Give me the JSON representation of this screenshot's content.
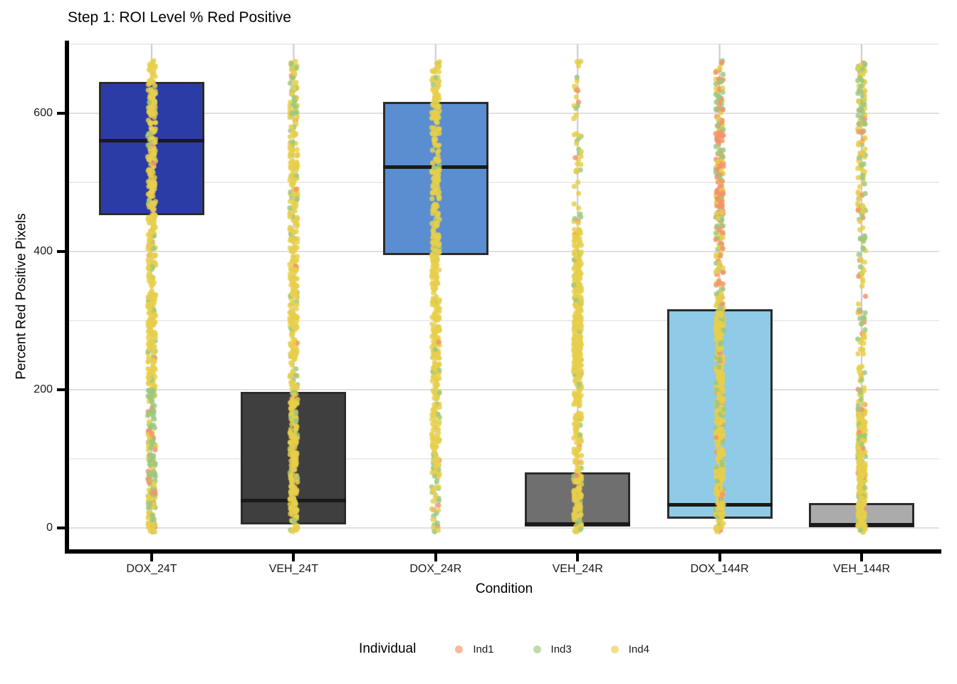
{
  "title": "Step 1: ROI Level % Red Positive",
  "axes": {
    "x": {
      "label": "Condition"
    },
    "y": {
      "label": "Percent Red Positive Pixels"
    }
  },
  "legend": {
    "title": "Individual",
    "entries": [
      {
        "label": "Ind1",
        "color": "#F5936A"
      },
      {
        "label": "Ind3",
        "color": "#9CC87E"
      },
      {
        "label": "Ind4",
        "color": "#E8CF4B"
      }
    ]
  },
  "colors": {
    "axis_line": "#000000",
    "grid_major": "#E0E0E0",
    "grid_minor": "#EDEDED",
    "box_border": "#2C2C2C",
    "median": "#1A1A1A",
    "whisker": "#C8C8C8"
  },
  "chart_data": {
    "type": "boxplot_jitter",
    "title": "Step 1: ROI Level % Red Positive",
    "xlabel": "Condition",
    "ylabel": "Percent Red Positive Pixels",
    "ylim": [
      -35,
      705
    ],
    "yticks": [
      0,
      200,
      400,
      600
    ],
    "yticks_minor": [
      100,
      300,
      500,
      700
    ],
    "grid": true,
    "legend_position": "bottom",
    "categories": [
      "DOX_24T",
      "VEH_24T",
      "DOX_24R",
      "VEH_24R",
      "DOX_144R",
      "VEH_144R"
    ],
    "boxes": [
      {
        "condition": "DOX_24T",
        "q1": 453,
        "median": 560,
        "q3": 645,
        "whisker_low": 0,
        "whisker_high": 700,
        "fill": "#2B3CA6"
      },
      {
        "condition": "VEH_24T",
        "q1": 5,
        "median": 40,
        "q3": 197,
        "whisker_low": 0,
        "whisker_high": 700,
        "fill": "#3F3F3F"
      },
      {
        "condition": "DOX_24R",
        "q1": 395,
        "median": 522,
        "q3": 617,
        "whisker_low": 0,
        "whisker_high": 700,
        "fill": "#5A8ED0"
      },
      {
        "condition": "VEH_24R",
        "q1": 2,
        "median": 6,
        "q3": 80,
        "whisker_low": 0,
        "whisker_high": 700,
        "fill": "#6F6F6F"
      },
      {
        "condition": "DOX_144R",
        "q1": 13,
        "median": 34,
        "q3": 317,
        "whisker_low": 0,
        "whisker_high": 700,
        "fill": "#8FCAE7"
      },
      {
        "condition": "VEH_144R",
        "q1": 1,
        "median": 5,
        "q3": 36,
        "whisker_low": 0,
        "whisker_high": 700,
        "fill": "#ABABAB"
      }
    ],
    "jitter": {
      "point_radius": 3.6,
      "alpha": 0.85,
      "jitter_width": 5.5,
      "value_range": [
        0,
        676
      ],
      "individual_colors": {
        "Ind1": "#F5936A",
        "Ind3": "#9CC87E",
        "Ind4": "#E8CF4B"
      },
      "strips": [
        {
          "condition": "DOX_24T",
          "zones": [
            {
              "range": [
                200,
                676
              ],
              "n": 380,
              "weights": {
                "Ind1": 0.02,
                "Ind3": 0.07,
                "Ind4": 0.91
              }
            },
            {
              "range": [
                60,
                200
              ],
              "n": 110,
              "weights": {
                "Ind1": 0.18,
                "Ind3": 0.58,
                "Ind4": 0.24
              }
            },
            {
              "range": [
                -6,
                60
              ],
              "n": 60,
              "weights": {
                "Ind1": 0.05,
                "Ind3": 0.35,
                "Ind4": 0.6
              }
            }
          ]
        },
        {
          "condition": "VEH_24T",
          "zones": [
            {
              "range": [
                -6,
                560
              ],
              "n": 430,
              "weights": {
                "Ind1": 0.02,
                "Ind3": 0.1,
                "Ind4": 0.88
              }
            },
            {
              "range": [
                560,
                676
              ],
              "n": 70,
              "weights": {
                "Ind1": 0.03,
                "Ind3": 0.3,
                "Ind4": 0.67
              }
            }
          ]
        },
        {
          "condition": "DOX_24R",
          "zones": [
            {
              "range": [
                110,
                676
              ],
              "n": 400,
              "weights": {
                "Ind1": 0.01,
                "Ind3": 0.07,
                "Ind4": 0.92
              }
            },
            {
              "range": [
                -6,
                110
              ],
              "n": 50,
              "weights": {
                "Ind1": 0.04,
                "Ind3": 0.36,
                "Ind4": 0.6
              }
            }
          ]
        },
        {
          "condition": "VEH_24R",
          "zones": [
            {
              "range": [
                -6,
                430
              ],
              "n": 430,
              "weights": {
                "Ind1": 0.01,
                "Ind3": 0.06,
                "Ind4": 0.93
              }
            },
            {
              "range": [
                430,
                676
              ],
              "n": 50,
              "weights": {
                "Ind1": 0.1,
                "Ind3": 0.18,
                "Ind4": 0.72
              }
            }
          ]
        },
        {
          "condition": "DOX_144R",
          "zones": [
            {
              "range": [
                -6,
                320
              ],
              "n": 400,
              "weights": {
                "Ind1": 0.06,
                "Ind3": 0.16,
                "Ind4": 0.78
              }
            },
            {
              "range": [
                320,
                470
              ],
              "n": 90,
              "weights": {
                "Ind1": 0.3,
                "Ind3": 0.28,
                "Ind4": 0.42
              }
            },
            {
              "range": [
                470,
                620
              ],
              "n": 120,
              "weights": {
                "Ind1": 0.62,
                "Ind3": 0.2,
                "Ind4": 0.18
              }
            },
            {
              "range": [
                620,
                676
              ],
              "n": 28,
              "weights": {
                "Ind1": 0.35,
                "Ind3": 0.35,
                "Ind4": 0.3
              }
            }
          ]
        },
        {
          "condition": "VEH_144R",
          "zones": [
            {
              "range": [
                -6,
                170
              ],
              "n": 300,
              "weights": {
                "Ind1": 0.05,
                "Ind3": 0.14,
                "Ind4": 0.81
              }
            },
            {
              "range": [
                170,
                560
              ],
              "n": 130,
              "weights": {
                "Ind1": 0.14,
                "Ind3": 0.32,
                "Ind4": 0.54
              }
            },
            {
              "range": [
                560,
                640
              ],
              "n": 48,
              "weights": {
                "Ind1": 0.2,
                "Ind3": 0.3,
                "Ind4": 0.5
              }
            },
            {
              "range": [
                640,
                676
              ],
              "n": 22,
              "weights": {
                "Ind1": 0.05,
                "Ind3": 0.6,
                "Ind4": 0.35
              }
            }
          ]
        }
      ]
    }
  }
}
